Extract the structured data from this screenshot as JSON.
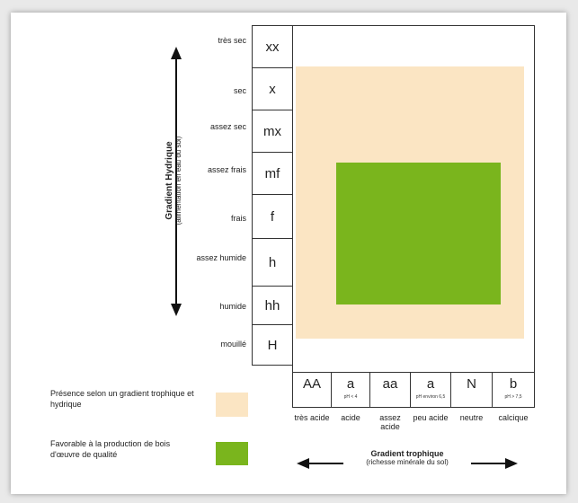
{
  "hydric_axis": {
    "title": "Gradient Hydrique",
    "subtitle": "(alimentation en eau du sol)",
    "levels": [
      {
        "label": "très sec",
        "code": "xx"
      },
      {
        "label": "sec",
        "code": "x"
      },
      {
        "label": "assez sec",
        "code": "mx"
      },
      {
        "label": "assez frais",
        "code": "mf"
      },
      {
        "label": "frais",
        "code": "f"
      },
      {
        "label": "assez humide",
        "code": "h"
      },
      {
        "label": "humide",
        "code": "hh"
      },
      {
        "label": "mouillé",
        "code": "H"
      }
    ]
  },
  "trophic_axis": {
    "title": "Gradient trophique",
    "subtitle": "(richesse minérale du sol)",
    "levels": [
      {
        "code": "AA",
        "ph": "",
        "label": "très acide"
      },
      {
        "code": "a",
        "ph": "pH < 4",
        "label": "acide"
      },
      {
        "code": "aa",
        "ph": "",
        "label": "assez acide"
      },
      {
        "code": "a",
        "ph": "pH environ 6,5",
        "label": "peu acide"
      },
      {
        "code": "N",
        "ph": "",
        "label": "neutre"
      },
      {
        "code": "b",
        "ph": "pH > 7,5",
        "label": "calcique"
      }
    ]
  },
  "legend": {
    "items": [
      {
        "text": "Présence selon un gradient trophique et hydrique",
        "color": "#fbe5c3"
      },
      {
        "text": "Favorable à la production de bois d'œuvre de qualité",
        "color": "#7ab51d"
      }
    ]
  },
  "colors": {
    "presence": "#fbe5c3",
    "favorable": "#7ab51d",
    "border": "#333333"
  }
}
